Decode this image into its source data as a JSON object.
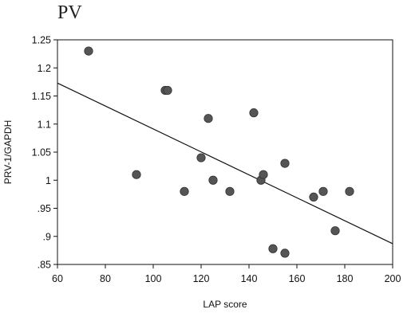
{
  "chart_data": {
    "type": "scatter",
    "title": "PV",
    "xlabel": "LAP score",
    "ylabel": "PRV-1/GAPDH",
    "xlim": [
      60,
      200
    ],
    "ylim": [
      0.85,
      1.25
    ],
    "x_ticks": [
      60,
      80,
      100,
      120,
      140,
      160,
      180,
      200
    ],
    "y_ticks": [
      0.85,
      0.9,
      0.95,
      1,
      1.05,
      1.1,
      1.15,
      1.2,
      1.25
    ],
    "x_tick_labels": [
      "60",
      "80",
      "100",
      "120",
      "140",
      "160",
      "180",
      "200"
    ],
    "y_tick_labels": [
      ".85",
      ".9",
      ".95",
      "1",
      "1.05",
      "1.1",
      "1.15",
      "1.2",
      "1.25"
    ],
    "grid": false,
    "points": [
      {
        "x": 73,
        "y": 1.23
      },
      {
        "x": 93,
        "y": 1.01
      },
      {
        "x": 105,
        "y": 1.16
      },
      {
        "x": 106,
        "y": 1.16
      },
      {
        "x": 113,
        "y": 0.98
      },
      {
        "x": 120,
        "y": 1.04
      },
      {
        "x": 123,
        "y": 1.11
      },
      {
        "x": 125,
        "y": 1.0
      },
      {
        "x": 132,
        "y": 0.98
      },
      {
        "x": 142,
        "y": 1.12
      },
      {
        "x": 145,
        "y": 1.0
      },
      {
        "x": 146,
        "y": 1.01
      },
      {
        "x": 150,
        "y": 0.878
      },
      {
        "x": 155,
        "y": 1.03
      },
      {
        "x": 155,
        "y": 0.87
      },
      {
        "x": 167,
        "y": 0.97
      },
      {
        "x": 171,
        "y": 0.98
      },
      {
        "x": 176,
        "y": 0.91
      },
      {
        "x": 182,
        "y": 0.98
      }
    ],
    "fit_line": {
      "x": [
        60,
        200
      ],
      "y": [
        1.173,
        0.887
      ]
    },
    "colors": {
      "point": "#555555",
      "line": "#111111",
      "axis": "#111111"
    }
  }
}
